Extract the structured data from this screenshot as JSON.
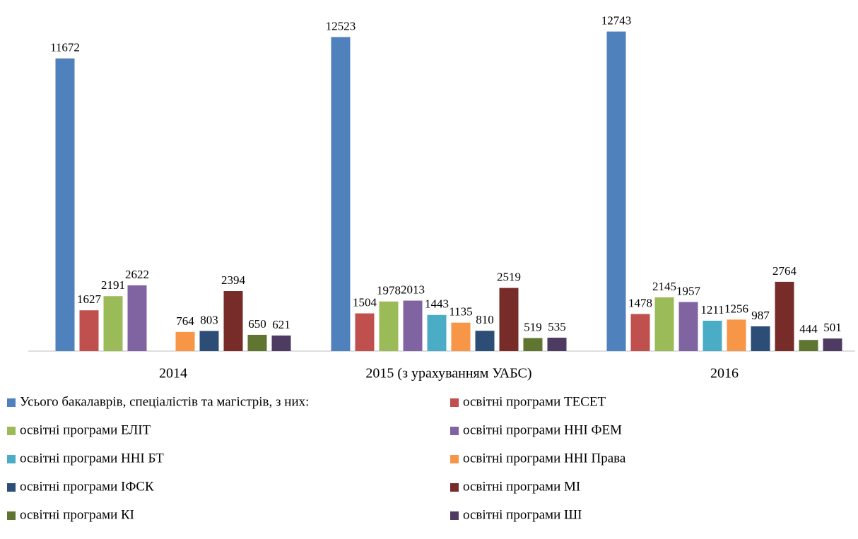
{
  "chart_data": {
    "type": "bar",
    "categories": [
      "2014",
      "2015 (з урахуванням УАБС)",
      "2016"
    ],
    "ylim": [
      0,
      14000
    ],
    "series": [
      {
        "name": "Усього бакалаврів, спеціалістів та магістрів, з них:",
        "color": "#4f81bd",
        "values": [
          11672,
          12523,
          12743
        ]
      },
      {
        "name": "освітні програми ТЕСЕТ",
        "color": "#c0504d",
        "values": [
          1627,
          1504,
          1478
        ]
      },
      {
        "name": "освітні програми ЕЛІТ",
        "color": "#9bbb59",
        "values": [
          2191,
          1978,
          2145
        ]
      },
      {
        "name": "освітні програми ННІ ФЕМ",
        "color": "#8064a2",
        "values": [
          2622,
          2013,
          1957
        ]
      },
      {
        "name": "освітні програми ННІ БТ",
        "color": "#4bacc6",
        "values": [
          null,
          1443,
          1211
        ]
      },
      {
        "name": "освітні програми ННІ Права",
        "color": "#f79646",
        "values": [
          764,
          1135,
          1256
        ]
      },
      {
        "name": "освітні програми ІФСК",
        "color": "#2c4d75",
        "values": [
          803,
          810,
          987
        ]
      },
      {
        "name": "освітні програми МІ",
        "color": "#772c2a",
        "values": [
          2394,
          2519,
          2764
        ]
      },
      {
        "name": "освітні програми КІ",
        "color": "#5f7530",
        "values": [
          650,
          519,
          444
        ]
      },
      {
        "name": "освітні програми ШІ",
        "color": "#4d3b62",
        "values": [
          621,
          535,
          501
        ]
      }
    ]
  }
}
